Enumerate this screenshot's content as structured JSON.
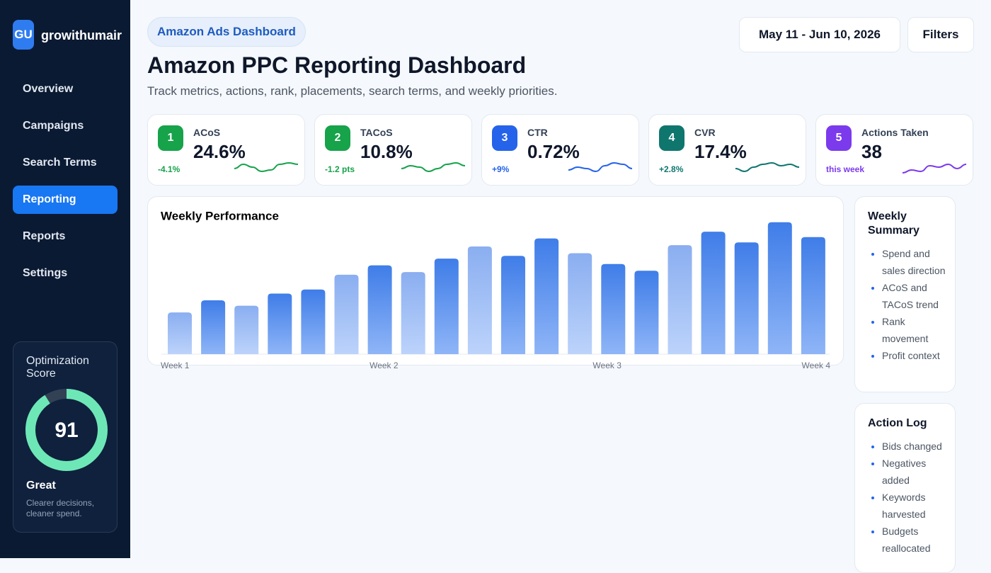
{
  "sidebar": {
    "logo_initials": "GU",
    "brand": "growithumair",
    "nav": [
      "Overview",
      "Campaigns",
      "Search Terms",
      "Reporting",
      "Reports",
      "Settings"
    ],
    "score": {
      "title": "Optimization Score",
      "value": 91,
      "range": [
        0,
        100
      ],
      "rating": "Great",
      "note": "Clearer decisions, cleaner spend."
    }
  },
  "header": {
    "badge": "Amazon Ads Dashboard",
    "title": "Amazon PPC Reporting Dashboard",
    "subtitle": "Track metrics, actions, rank, placements, search terms, and weekly priorities.",
    "date_range": "May 11 - Jun 10, 2026",
    "filters": "Filters"
  },
  "kpis": [
    {
      "number": 1,
      "label": "ACoS",
      "value": "24.6%",
      "delta": "-4.1%",
      "color": "#16a34a"
    },
    {
      "number": 2,
      "label": "TACoS",
      "value": "10.8%",
      "delta": "-1.2 pts",
      "color": "#16a34a"
    },
    {
      "number": 3,
      "label": "CTR",
      "value": "0.72%",
      "delta": "+9%",
      "color": "#2563eb"
    },
    {
      "number": 4,
      "label": "CVR",
      "value": "17.4%",
      "delta": "+2.8%",
      "color": "#0f766e"
    },
    {
      "number": 5,
      "label": "Actions Taken",
      "value": "38",
      "delta": "this week",
      "color": "#7c3aed"
    }
  ],
  "chart_data": {
    "type": "bar",
    "title": "Weekly Performance",
    "values": [
      31,
      40,
      36,
      45,
      48,
      59,
      66,
      61,
      71,
      80,
      73,
      86,
      75,
      67,
      62,
      81,
      91,
      83,
      98,
      87
    ],
    "ylim": [
      0,
      100
    ],
    "x_labels": [
      "Week 1",
      "Week 2",
      "Week 3",
      "Week 4"
    ],
    "color": "#3b78e7"
  },
  "panels": [
    {
      "title": "Weekly Summary",
      "items": [
        "Spend and sales direction",
        "ACoS and TACoS trend",
        "Rank movement",
        "Profit context"
      ]
    },
    {
      "title": "Action Log",
      "items": [
        "Bids changed",
        "Negatives added",
        "Keywords harvested",
        "Budgets reallocated"
      ]
    }
  ]
}
